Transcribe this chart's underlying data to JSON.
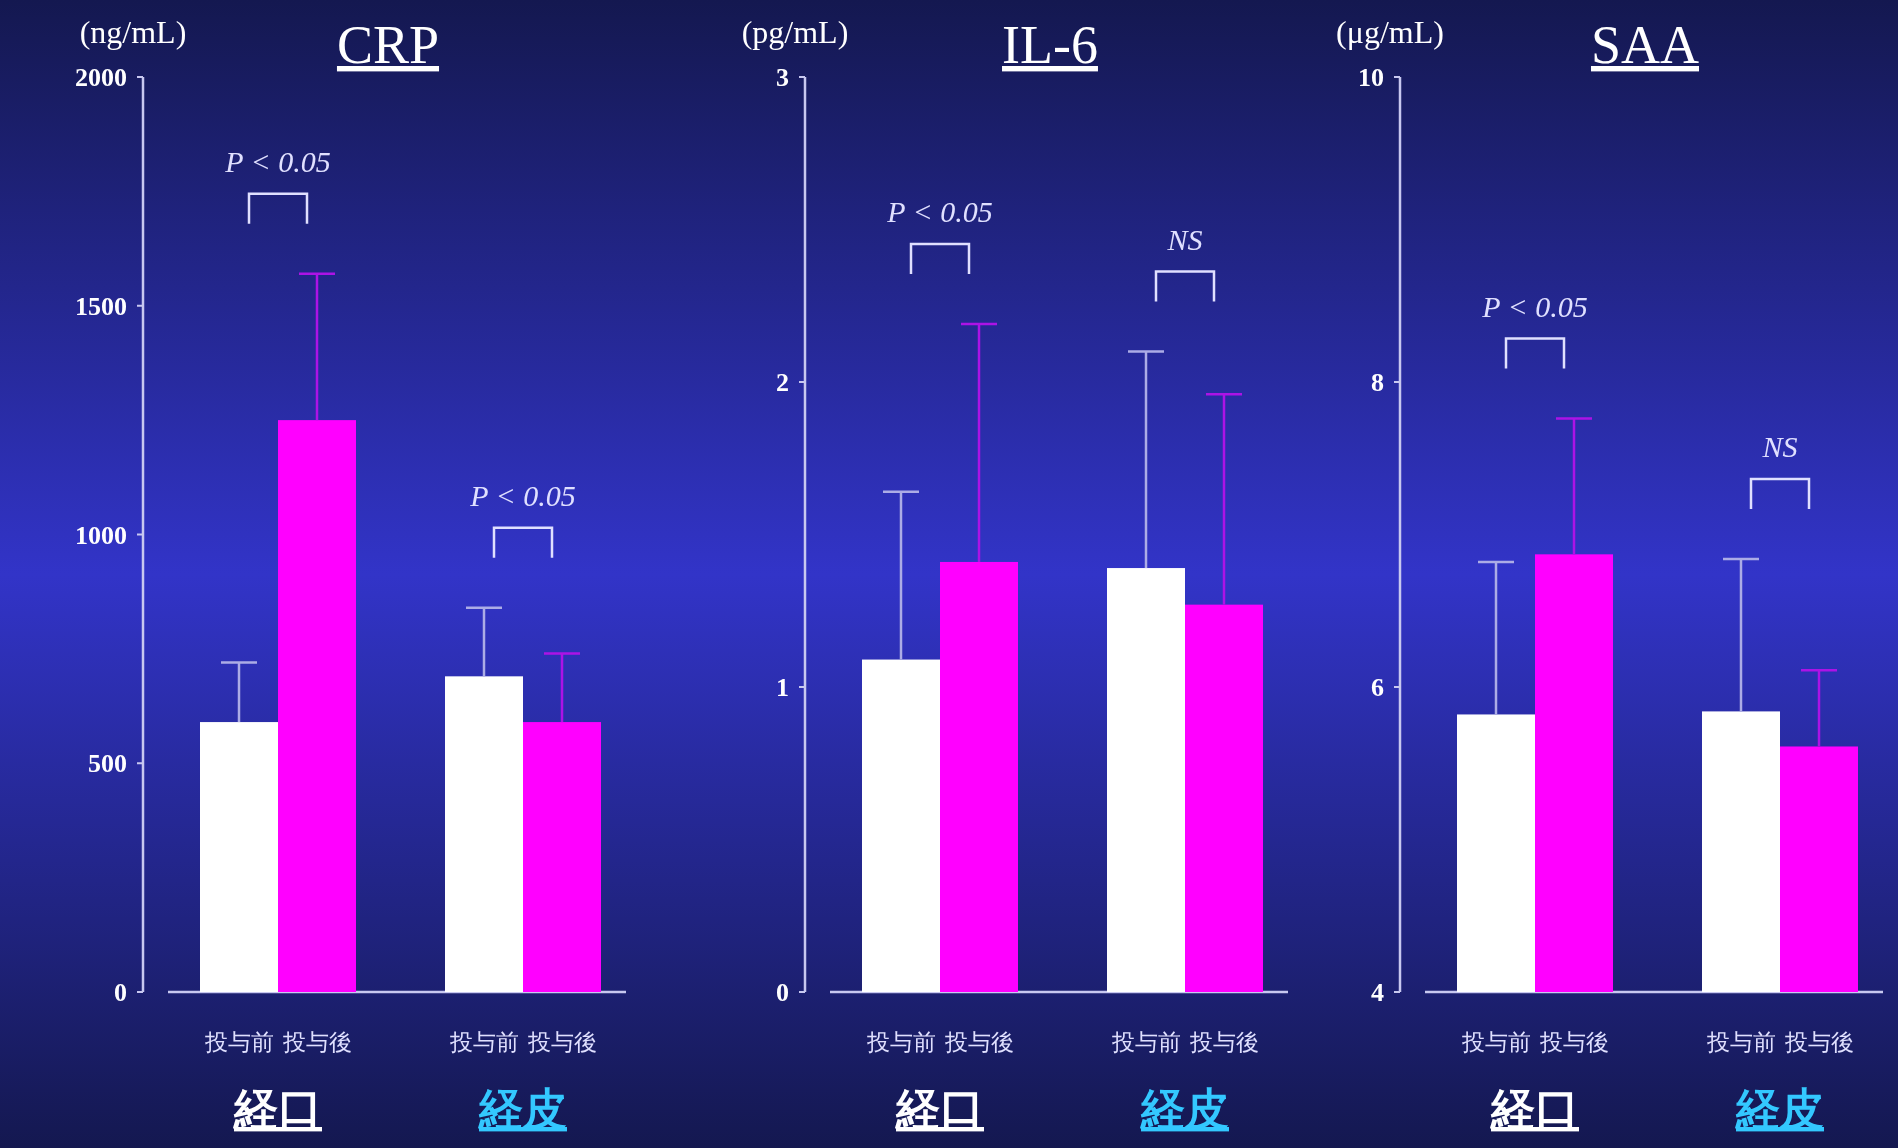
{
  "chart_data": [
    {
      "type": "bar",
      "title": "CRP",
      "ylabel": "(ng/mL)",
      "categories": [
        "投与前",
        "投与後",
        "投与前",
        "投与後"
      ],
      "values": [
        590,
        1250,
        690,
        590
      ],
      "colors": [
        "#ffffff",
        "#ff00ff",
        "#ffffff",
        "#ff00ff"
      ],
      "errors": [
        [
          590,
          720
        ],
        [
          1250,
          1570
        ],
        [
          690,
          840
        ],
        [
          590,
          740
        ]
      ],
      "ylim": [
        0,
        2000
      ],
      "yticks": [
        0,
        500,
        1000,
        1500,
        2000
      ],
      "annotations": [
        "P < 0.05",
        "P < 0.05",
        "経口",
        "経皮"
      ]
    },
    {
      "type": "bar",
      "title": "IL-6",
      "ylabel": "(pg/mL)",
      "categories": [
        "投与前",
        "投与後",
        "投与前",
        "投与後"
      ],
      "values": [
        1.09,
        1.41,
        1.39,
        1.27
      ],
      "colors": [
        "#ffffff",
        "#ff00ff",
        "#ffffff",
        "#ff00ff"
      ],
      "errors": [
        [
          1.09,
          1.64
        ],
        [
          1.41,
          2.19
        ],
        [
          1.39,
          2.1
        ],
        [
          1.27,
          1.96
        ]
      ],
      "ylim": [
        0,
        3
      ],
      "yticks": [
        0,
        1,
        2,
        3
      ],
      "annotations": [
        "P < 0.05",
        "NS",
        "経口",
        "経皮"
      ]
    },
    {
      "type": "bar",
      "title": "SAA",
      "ylabel": "(μg/mL)",
      "categories": [
        "投与前",
        "投与後",
        "投与前",
        "投与後"
      ],
      "values": [
        5.82,
        6.87,
        5.84,
        5.61
      ],
      "colors": [
        "#ffffff",
        "#ff00ff",
        "#ffffff",
        "#ff00ff"
      ],
      "errors": [
        [
          5.82,
          6.82
        ],
        [
          6.87,
          7.76
        ],
        [
          5.84,
          6.84
        ],
        [
          5.61,
          6.11
        ]
      ],
      "ylim": [
        4,
        10
      ],
      "yticks": [
        4,
        6,
        8,
        10
      ],
      "annotations": [
        "P < 0.05",
        "NS",
        "経口",
        "経皮"
      ]
    }
  ]
}
